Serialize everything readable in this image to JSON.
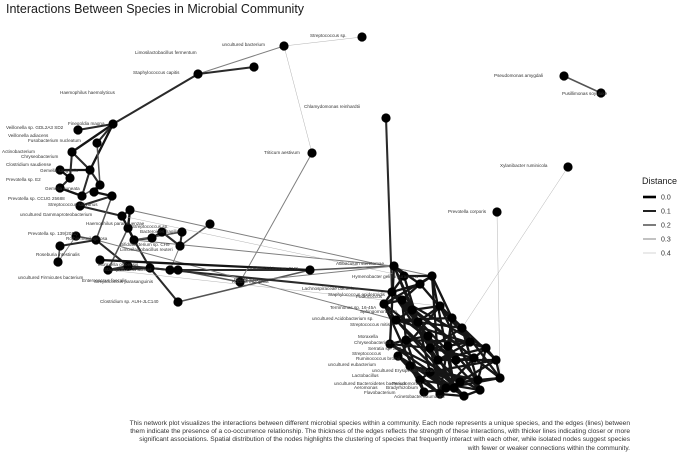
{
  "title": "Interactions Between Species in Microbial Community",
  "legend": {
    "title": "Distance",
    "entries": [
      {
        "label": "0.0",
        "width": 2.6,
        "color": "#000000"
      },
      {
        "label": "0.1",
        "width": 2.0,
        "color": "#222222"
      },
      {
        "label": "0.2",
        "width": 1.4,
        "color": "#444444"
      },
      {
        "label": "0.3",
        "width": 0.9,
        "color": "#777777"
      },
      {
        "label": "0.4",
        "width": 0.5,
        "color": "#aaaaaa"
      }
    ]
  },
  "caption": "This network plot visualizes the interactions between different microbial species within a community. Each node represents a unique species, and the edges (lines) between them indicate the presence of a co-occurrence relationship. The thickness of the edges reflects the strength of these interactions, with thicker lines indicating closer or more significant associations. Spatial distribution of the nodes highlights the clustering of species that frequently interact with each other, while isolated nodes suggest species with fewer or weaker connections within the community.",
  "labels": [
    "Streptococcus sp.",
    "uncultured bacterium",
    "Limosilactobacillus fermentum",
    "Staphylococcus capitis",
    "Pseudomonas amygdali",
    "Pusillimonas soyulake",
    "Haemophilus haemolyticus",
    "Chlamydomonas reinhardtii",
    "Finegoldia magna",
    "Veillonella sp. GDL2A3 SD2",
    "Fusobacterium nucleatum",
    "Veillonella adiacens",
    "Triticum aestivum",
    "Xylanibacter ruminicola",
    "Actinobacterium",
    "Clostridium saudiense",
    "Chryseobacterium",
    "Gemella sanguinis",
    "Prevotella sp. E2",
    "Gemella cuneata",
    "Prevotella sp. CCUG 25688",
    "Streptococcus salivarius",
    "uncultured Gammaproteobacterium",
    "Prevotella corporis",
    "Prevotella sp. 139(2011)",
    "Rothia mucilaginosa",
    "Haemophilus parainfluenzae",
    "Streptococcus sp.",
    "Roseburia intestinalis",
    "Limosilactobacillus reuteri",
    "Bacteroides fragilis",
    "Moraxella osloensis",
    "Staphylococcus aureus",
    "Enterococcus faecalis",
    "Bradyrhizobium sp. CH8",
    "Bacteroides sp.",
    "Bifidobacterium sp. CH9",
    "uncultured Firmicutes bacterium",
    "Streptococcus parasanguinis",
    "Kocuria rhizophila",
    "Clostridium sp. AUH-JLC140",
    "Atlibaculum steretomae",
    "Hymenobacter gelipurpurascens",
    "Lachnospiraceae bacterium",
    "Staphylococcus epidermidis",
    "Pediococcus",
    "Terrimonas sp. 16-45A",
    "Sphingomonas sp.",
    "uncultured Acidobacterium sp.",
    "Streptococcus mitis",
    "Moraxella",
    "Chryseobacterium sp.",
    "Serratia sp. SB3",
    "Streptococcus",
    "Ruminococcus bromii",
    "uncultured eubacterium",
    "uncultured Erysipelotrichaceae",
    "Lactobacillus",
    "uncultured Bacteroidetes bacterium",
    "Pseudomonas",
    "Bradyrhizobium",
    "Flavobacterium",
    "Aeromonas",
    "Acinetobacter baumannii"
  ]
}
